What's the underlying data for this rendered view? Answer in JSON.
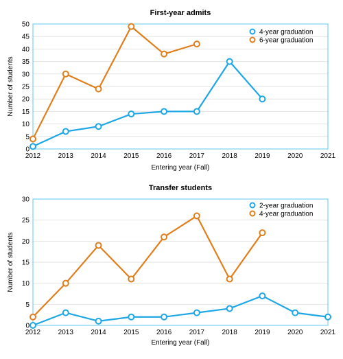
{
  "chart_data": [
    {
      "type": "line",
      "title": "First-year admits",
      "xlabel": "Entering year (Fall)",
      "ylabel": "Number of students",
      "x": [
        2012,
        2013,
        2014,
        2015,
        2016,
        2017,
        2018,
        2019,
        2020,
        2021
      ],
      "xlim": [
        2012,
        2021
      ],
      "ylim": [
        0,
        50
      ],
      "yticks": [
        0,
        5,
        10,
        15,
        20,
        25,
        30,
        35,
        40,
        45,
        50
      ],
      "grid": true,
      "legend": "top-right",
      "series": [
        {
          "name": "4-year graduation",
          "color": "#1ea7e6",
          "values": [
            1,
            7,
            9,
            14,
            15,
            15,
            35,
            20,
            null,
            null
          ]
        },
        {
          "name": "6-year graduation",
          "color": "#e07e1b",
          "values": [
            4,
            30,
            24,
            49,
            38,
            42,
            null,
            null,
            null,
            null
          ]
        }
      ]
    },
    {
      "type": "line",
      "title": "Transfer students",
      "xlabel": "Entering year (Fall)",
      "ylabel": "Number of students",
      "x": [
        2012,
        2013,
        2014,
        2015,
        2016,
        2017,
        2018,
        2019,
        2020,
        2021
      ],
      "xlim": [
        2012,
        2021
      ],
      "ylim": [
        0,
        30
      ],
      "yticks": [
        0,
        5,
        10,
        15,
        20,
        25,
        30
      ],
      "grid": true,
      "legend": "top-right",
      "series": [
        {
          "name": "2-year graduation",
          "color": "#1ea7e6",
          "values": [
            0,
            3,
            1,
            2,
            2,
            3,
            4,
            7,
            3,
            2
          ]
        },
        {
          "name": "4-year graduation",
          "color": "#e07e1b",
          "values": [
            2,
            10,
            19,
            11,
            21,
            26,
            11,
            22,
            null,
            null
          ]
        }
      ]
    }
  ]
}
